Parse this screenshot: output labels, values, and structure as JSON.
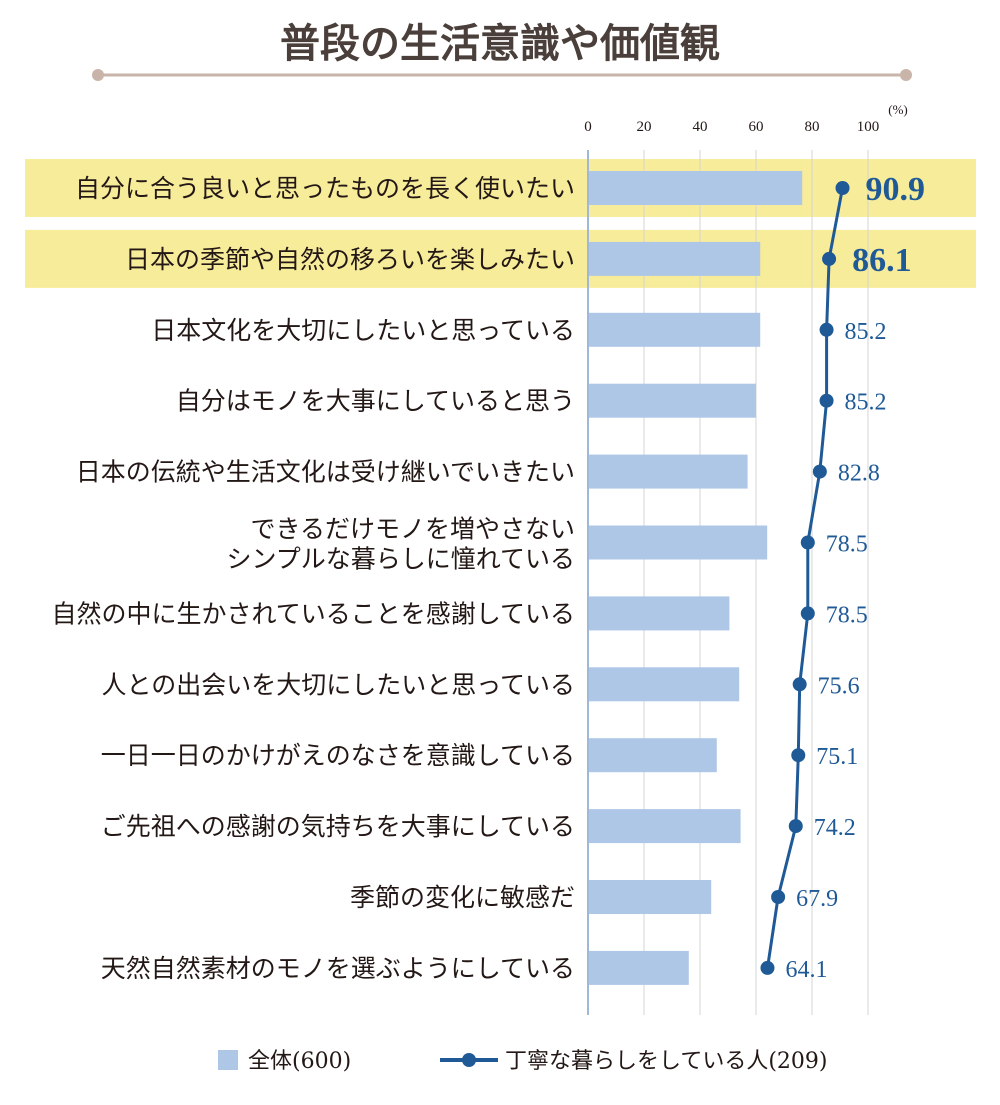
{
  "title": "普段の生活意識や価値観",
  "colors": {
    "bar": "#afc7e6",
    "line": "#1f5a96",
    "highlight": "#f7ec9a",
    "rule": "#c9b4a9",
    "grid": "#d4d4d4",
    "axis": "#9fb8d8",
    "text": "#231815"
  },
  "chart_data": {
    "type": "bar",
    "orientation": "horizontal",
    "unit": "(%)",
    "xlim": [
      0,
      100
    ],
    "ticks": [
      "0",
      "20",
      "40",
      "60",
      "80",
      "100"
    ],
    "tick_values": [
      0,
      20,
      40,
      60,
      80,
      100
    ],
    "categories": [
      [
        "自分に合う良いと思ったものを長く使いたい"
      ],
      [
        "日本の季節や自然の移ろいを楽しみたい"
      ],
      [
        "日本文化を大切にしたいと思っている"
      ],
      [
        "自分はモノを大事にしていると思う"
      ],
      [
        "日本の伝統や生活文化は受け継いでいきたい"
      ],
      [
        "できるだけモノを増やさない",
        "シンプルな暮らしに憧れている"
      ],
      [
        "自然の中に生かされていることを感謝している"
      ],
      [
        "人との出会いを大切にしたいと思っている"
      ],
      [
        "一日一日のかけがえのなさを意識している"
      ],
      [
        "ご先祖への感謝の気持ちを大事にしている"
      ],
      [
        "季節の変化に敏感だ"
      ],
      [
        "天然自然素材のモノを選ぶようにしている"
      ]
    ],
    "highlighted": [
      0,
      1
    ],
    "series": [
      {
        "name": "全体(600)",
        "type": "bar",
        "values": [
          76.5,
          61.5,
          61.5,
          60.0,
          57.0,
          64.0,
          50.5,
          54.0,
          46.0,
          54.5,
          44.0,
          36.0
        ]
      },
      {
        "name": "丁寧な暮らしをしている人(209)",
        "type": "line",
        "values": [
          90.9,
          86.1,
          85.2,
          85.2,
          82.8,
          78.5,
          78.5,
          75.6,
          75.1,
          74.2,
          67.9,
          64.1
        ],
        "labels": [
          "90.9",
          "86.1",
          "85.2",
          "85.2",
          "82.8",
          "78.5",
          "78.5",
          "75.6",
          "75.1",
          "74.2",
          "67.9",
          "64.1"
        ]
      }
    ]
  },
  "legend": {
    "bar_label": "全体(600)",
    "line_label": "丁寧な暮らしをしている人(209)"
  }
}
